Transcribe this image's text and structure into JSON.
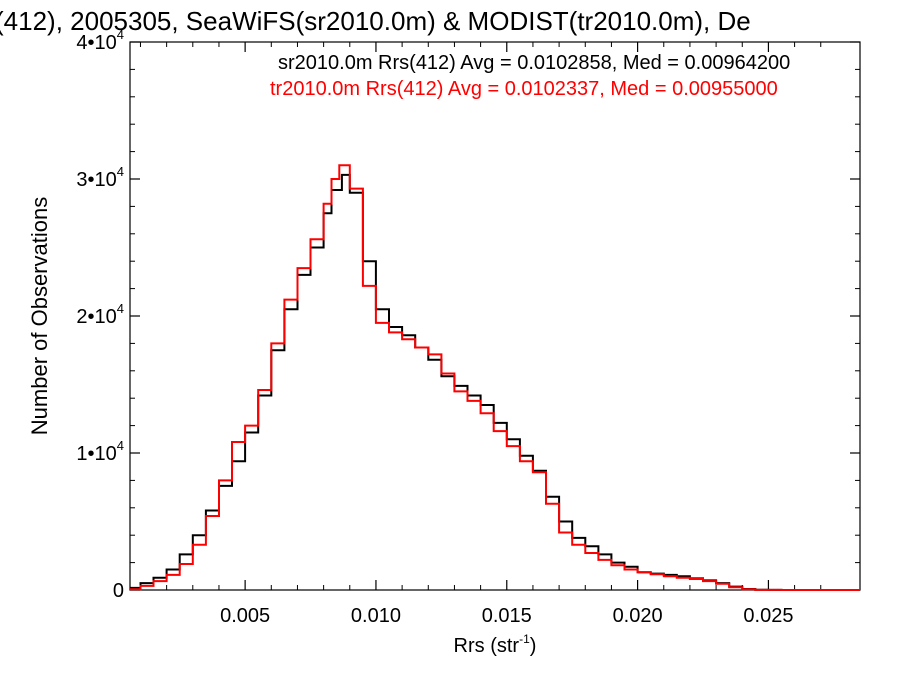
{
  "chart_data": {
    "type": "line",
    "title": "(412), 2005305, SeaWiFS(sr2010.0m) & MODIST(tr2010.0m), De",
    "xlabel": "Rrs (str",
    "xlabel_sup": "-1",
    "xlabel_close": ")",
    "ylabel": "Number of Observations",
    "xlim": [
      0.0006,
      0.0285
    ],
    "ylim": [
      0,
      40000
    ],
    "x_ticks": [
      {
        "value": 0.005,
        "label": "0.005"
      },
      {
        "value": 0.01,
        "label": "0.010"
      },
      {
        "value": 0.015,
        "label": "0.015"
      },
      {
        "value": 0.02,
        "label": "0.020"
      },
      {
        "value": 0.025,
        "label": "0.025"
      }
    ],
    "y_ticks": [
      {
        "value": 0,
        "label": "0",
        "sup": ""
      },
      {
        "value": 10000,
        "label": "1•10",
        "sup": "4"
      },
      {
        "value": 20000,
        "label": "2•10",
        "sup": "4"
      },
      {
        "value": 30000,
        "label": "3•10",
        "sup": "4"
      },
      {
        "value": 40000,
        "label": "4•10",
        "sup": "4"
      }
    ],
    "grid": false,
    "annotations": [
      {
        "text": "sr2010.0m Rrs(412) Avg = 0.0102858, Med = 0.00964200",
        "color": "#000000"
      },
      {
        "text": "tr2010.0m Rrs(412) Avg = 0.0102337, Med = 0.00955000",
        "color": "#ff0000"
      }
    ],
    "series": [
      {
        "color": "#000000",
        "x": [
          0.0006,
          0.001,
          0.0015,
          0.002,
          0.0025,
          0.003,
          0.0035,
          0.004,
          0.0045,
          0.005,
          0.0055,
          0.006,
          0.0065,
          0.007,
          0.0075,
          0.008,
          0.0083,
          0.0087,
          0.009,
          0.0095,
          0.01,
          0.0105,
          0.011,
          0.0115,
          0.012,
          0.0125,
          0.013,
          0.0135,
          0.014,
          0.0145,
          0.015,
          0.0155,
          0.016,
          0.0165,
          0.017,
          0.0175,
          0.018,
          0.0185,
          0.019,
          0.0195,
          0.02,
          0.0205,
          0.021,
          0.0215,
          0.022,
          0.0225,
          0.023,
          0.0235,
          0.024,
          0.0245,
          0.025,
          0.0255,
          0.026,
          0.027,
          0.028,
          0.0285
        ],
        "y": [
          150,
          500,
          900,
          1500,
          2600,
          4000,
          5800,
          7600,
          9400,
          11500,
          14200,
          17500,
          20500,
          23000,
          25000,
          27500,
          29200,
          30300,
          29000,
          24000,
          20500,
          19200,
          18600,
          17700,
          16800,
          15600,
          14900,
          14200,
          13500,
          12200,
          11000,
          9800,
          8700,
          6800,
          5000,
          3800,
          3200,
          2600,
          2000,
          1700,
          1300,
          1200,
          1100,
          1000,
          850,
          700,
          500,
          250,
          70,
          15,
          5,
          0,
          0,
          0,
          0,
          0
        ]
      },
      {
        "color": "#ff0000",
        "x": [
          0.0006,
          0.001,
          0.0015,
          0.002,
          0.0025,
          0.003,
          0.0035,
          0.004,
          0.0045,
          0.005,
          0.0055,
          0.006,
          0.0065,
          0.007,
          0.0075,
          0.008,
          0.0083,
          0.0086,
          0.009,
          0.0095,
          0.01,
          0.0105,
          0.011,
          0.0115,
          0.012,
          0.0125,
          0.013,
          0.0135,
          0.014,
          0.0145,
          0.015,
          0.0155,
          0.016,
          0.0165,
          0.017,
          0.0175,
          0.018,
          0.0185,
          0.019,
          0.0195,
          0.02,
          0.0205,
          0.021,
          0.0215,
          0.022,
          0.0225,
          0.023,
          0.0235,
          0.024,
          0.0245,
          0.025,
          0.0255,
          0.026,
          0.027,
          0.028,
          0.0285
        ],
        "y": [
          50,
          300,
          650,
          1100,
          1900,
          3300,
          5400,
          8000,
          10800,
          12000,
          14600,
          18000,
          21200,
          23500,
          25600,
          28200,
          30000,
          31000,
          29300,
          22200,
          19500,
          18800,
          18300,
          17700,
          17200,
          15800,
          14500,
          13800,
          12900,
          11600,
          10500,
          9400,
          8600,
          6300,
          4200,
          3300,
          2700,
          2200,
          1800,
          1500,
          1300,
          1150,
          1000,
          900,
          800,
          650,
          450,
          200,
          60,
          10,
          5,
          0,
          0,
          0,
          0,
          0
        ]
      }
    ]
  }
}
